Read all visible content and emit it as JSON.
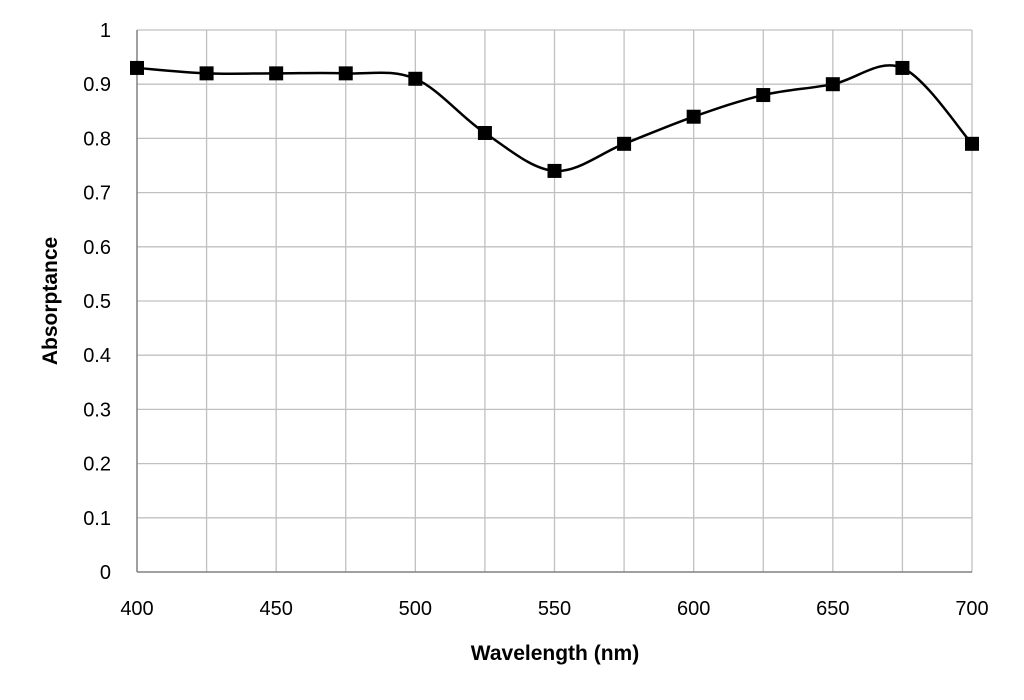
{
  "chart_data": {
    "type": "line",
    "title": "",
    "xlabel": "Wavelength (nm)",
    "ylabel": "Absorptance",
    "xlim": [
      400,
      700
    ],
    "ylim": [
      0,
      1
    ],
    "x_ticks": [
      400,
      450,
      500,
      550,
      600,
      650,
      700
    ],
    "x_tick_labels": [
      "400",
      "450",
      "500",
      "550",
      "600",
      "650",
      "700"
    ],
    "y_ticks": [
      0,
      0.1,
      0.2,
      0.3,
      0.4,
      0.5,
      0.6,
      0.7,
      0.8,
      0.9,
      1
    ],
    "y_tick_labels": [
      "0",
      "0.1",
      "0.2",
      "0.3",
      "0.4",
      "0.5",
      "0.6",
      "0.7",
      "0.8",
      "0.9",
      "1"
    ],
    "x_minor_gridlines": [
      425,
      475,
      525,
      575,
      625,
      675
    ],
    "grid": true,
    "legend": "none",
    "smoothed": true,
    "marker": "square",
    "series": [
      {
        "x": [
          400,
          425,
          450,
          475,
          500,
          525,
          550,
          575,
          600,
          625,
          650,
          675,
          700
        ],
        "y": [
          0.93,
          0.92,
          0.92,
          0.92,
          0.91,
          0.81,
          0.74,
          0.79,
          0.84,
          0.88,
          0.9,
          0.93,
          0.79
        ]
      }
    ],
    "colors": {
      "line": "#000000",
      "marker": "#000000",
      "grid": "#c0c0c0",
      "axis": "#808080"
    }
  }
}
